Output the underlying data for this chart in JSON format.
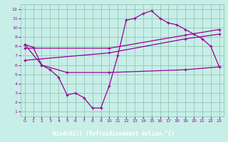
{
  "bg_color": "#c8eee8",
  "grid_color": "#99ccbb",
  "line_color": "#990099",
  "xlabel": "Windchill (Refroidissement éolien,°C)",
  "xlim": [
    -0.5,
    23.5
  ],
  "ylim": [
    0.5,
    12.5
  ],
  "xticks": [
    0,
    1,
    2,
    3,
    4,
    5,
    6,
    7,
    8,
    9,
    10,
    11,
    12,
    13,
    14,
    15,
    16,
    17,
    18,
    19,
    20,
    21,
    22,
    23
  ],
  "yticks": [
    1,
    2,
    3,
    4,
    5,
    6,
    7,
    8,
    9,
    10,
    11,
    12
  ],
  "curve1_x": [
    0,
    1,
    2,
    3,
    4,
    5,
    6,
    7,
    8,
    9,
    10,
    11,
    12,
    13,
    14,
    15,
    16,
    17,
    18,
    19,
    20,
    21,
    22,
    23
  ],
  "curve1_y": [
    8.2,
    7.9,
    6.0,
    5.5,
    4.7,
    2.8,
    3.0,
    2.5,
    1.4,
    1.4,
    3.8,
    7.0,
    10.8,
    11.0,
    11.5,
    11.8,
    11.0,
    10.5,
    10.3,
    9.8,
    9.3,
    8.8,
    8.0,
    5.8
  ],
  "curve2_x": [
    0,
    2,
    5,
    10,
    19,
    23
  ],
  "curve2_y": [
    8.2,
    6.0,
    5.2,
    5.2,
    5.5,
    5.8
  ],
  "curve3_x": [
    0,
    10,
    19,
    23
  ],
  "curve3_y": [
    6.5,
    7.3,
    8.8,
    9.3
  ],
  "curve4_x": [
    0,
    10,
    19,
    23
  ],
  "curve4_y": [
    7.8,
    7.8,
    9.2,
    9.8
  ]
}
